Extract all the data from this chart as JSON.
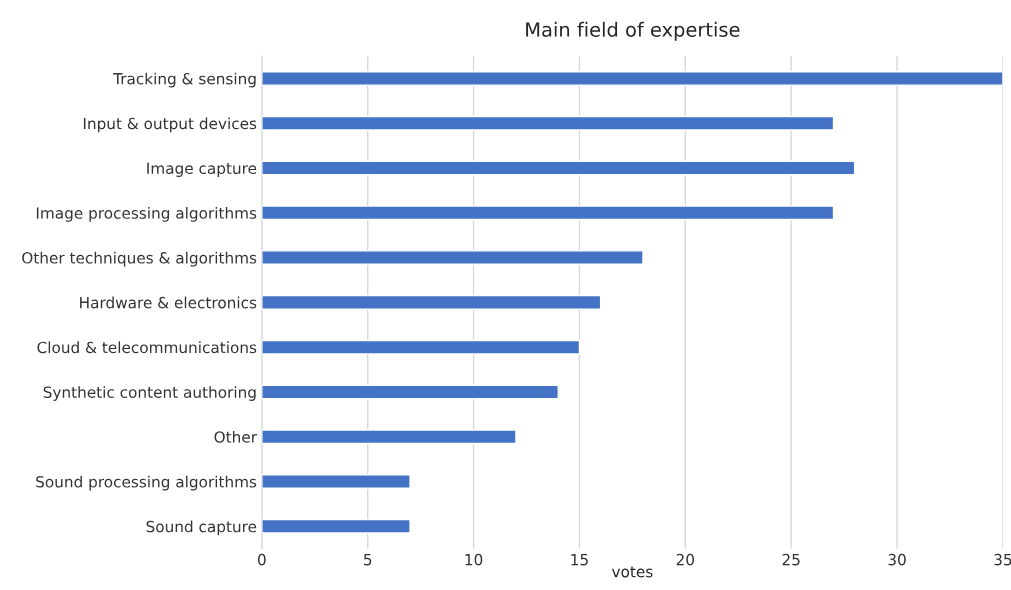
{
  "chart_data": {
    "type": "bar",
    "orientation": "horizontal",
    "title": "Main field of expertise",
    "xlabel": "votes",
    "categories": [
      "Tracking & sensing",
      "Input & output devices",
      "Image capture",
      "Image processing algorithms",
      "Other techniques & algorithms",
      "Hardware & electronics",
      "Cloud & telecommunications",
      "Synthetic content authoring",
      "Other",
      "Sound processing algorithms",
      "Sound capture"
    ],
    "values": [
      35,
      27,
      28,
      27,
      18,
      16,
      15,
      14,
      12,
      7,
      7
    ],
    "color": "#4472c4",
    "xlim": [
      0,
      35
    ],
    "xticks": [
      0,
      5,
      10,
      15,
      20,
      25,
      30,
      35
    ],
    "grid": "x"
  }
}
